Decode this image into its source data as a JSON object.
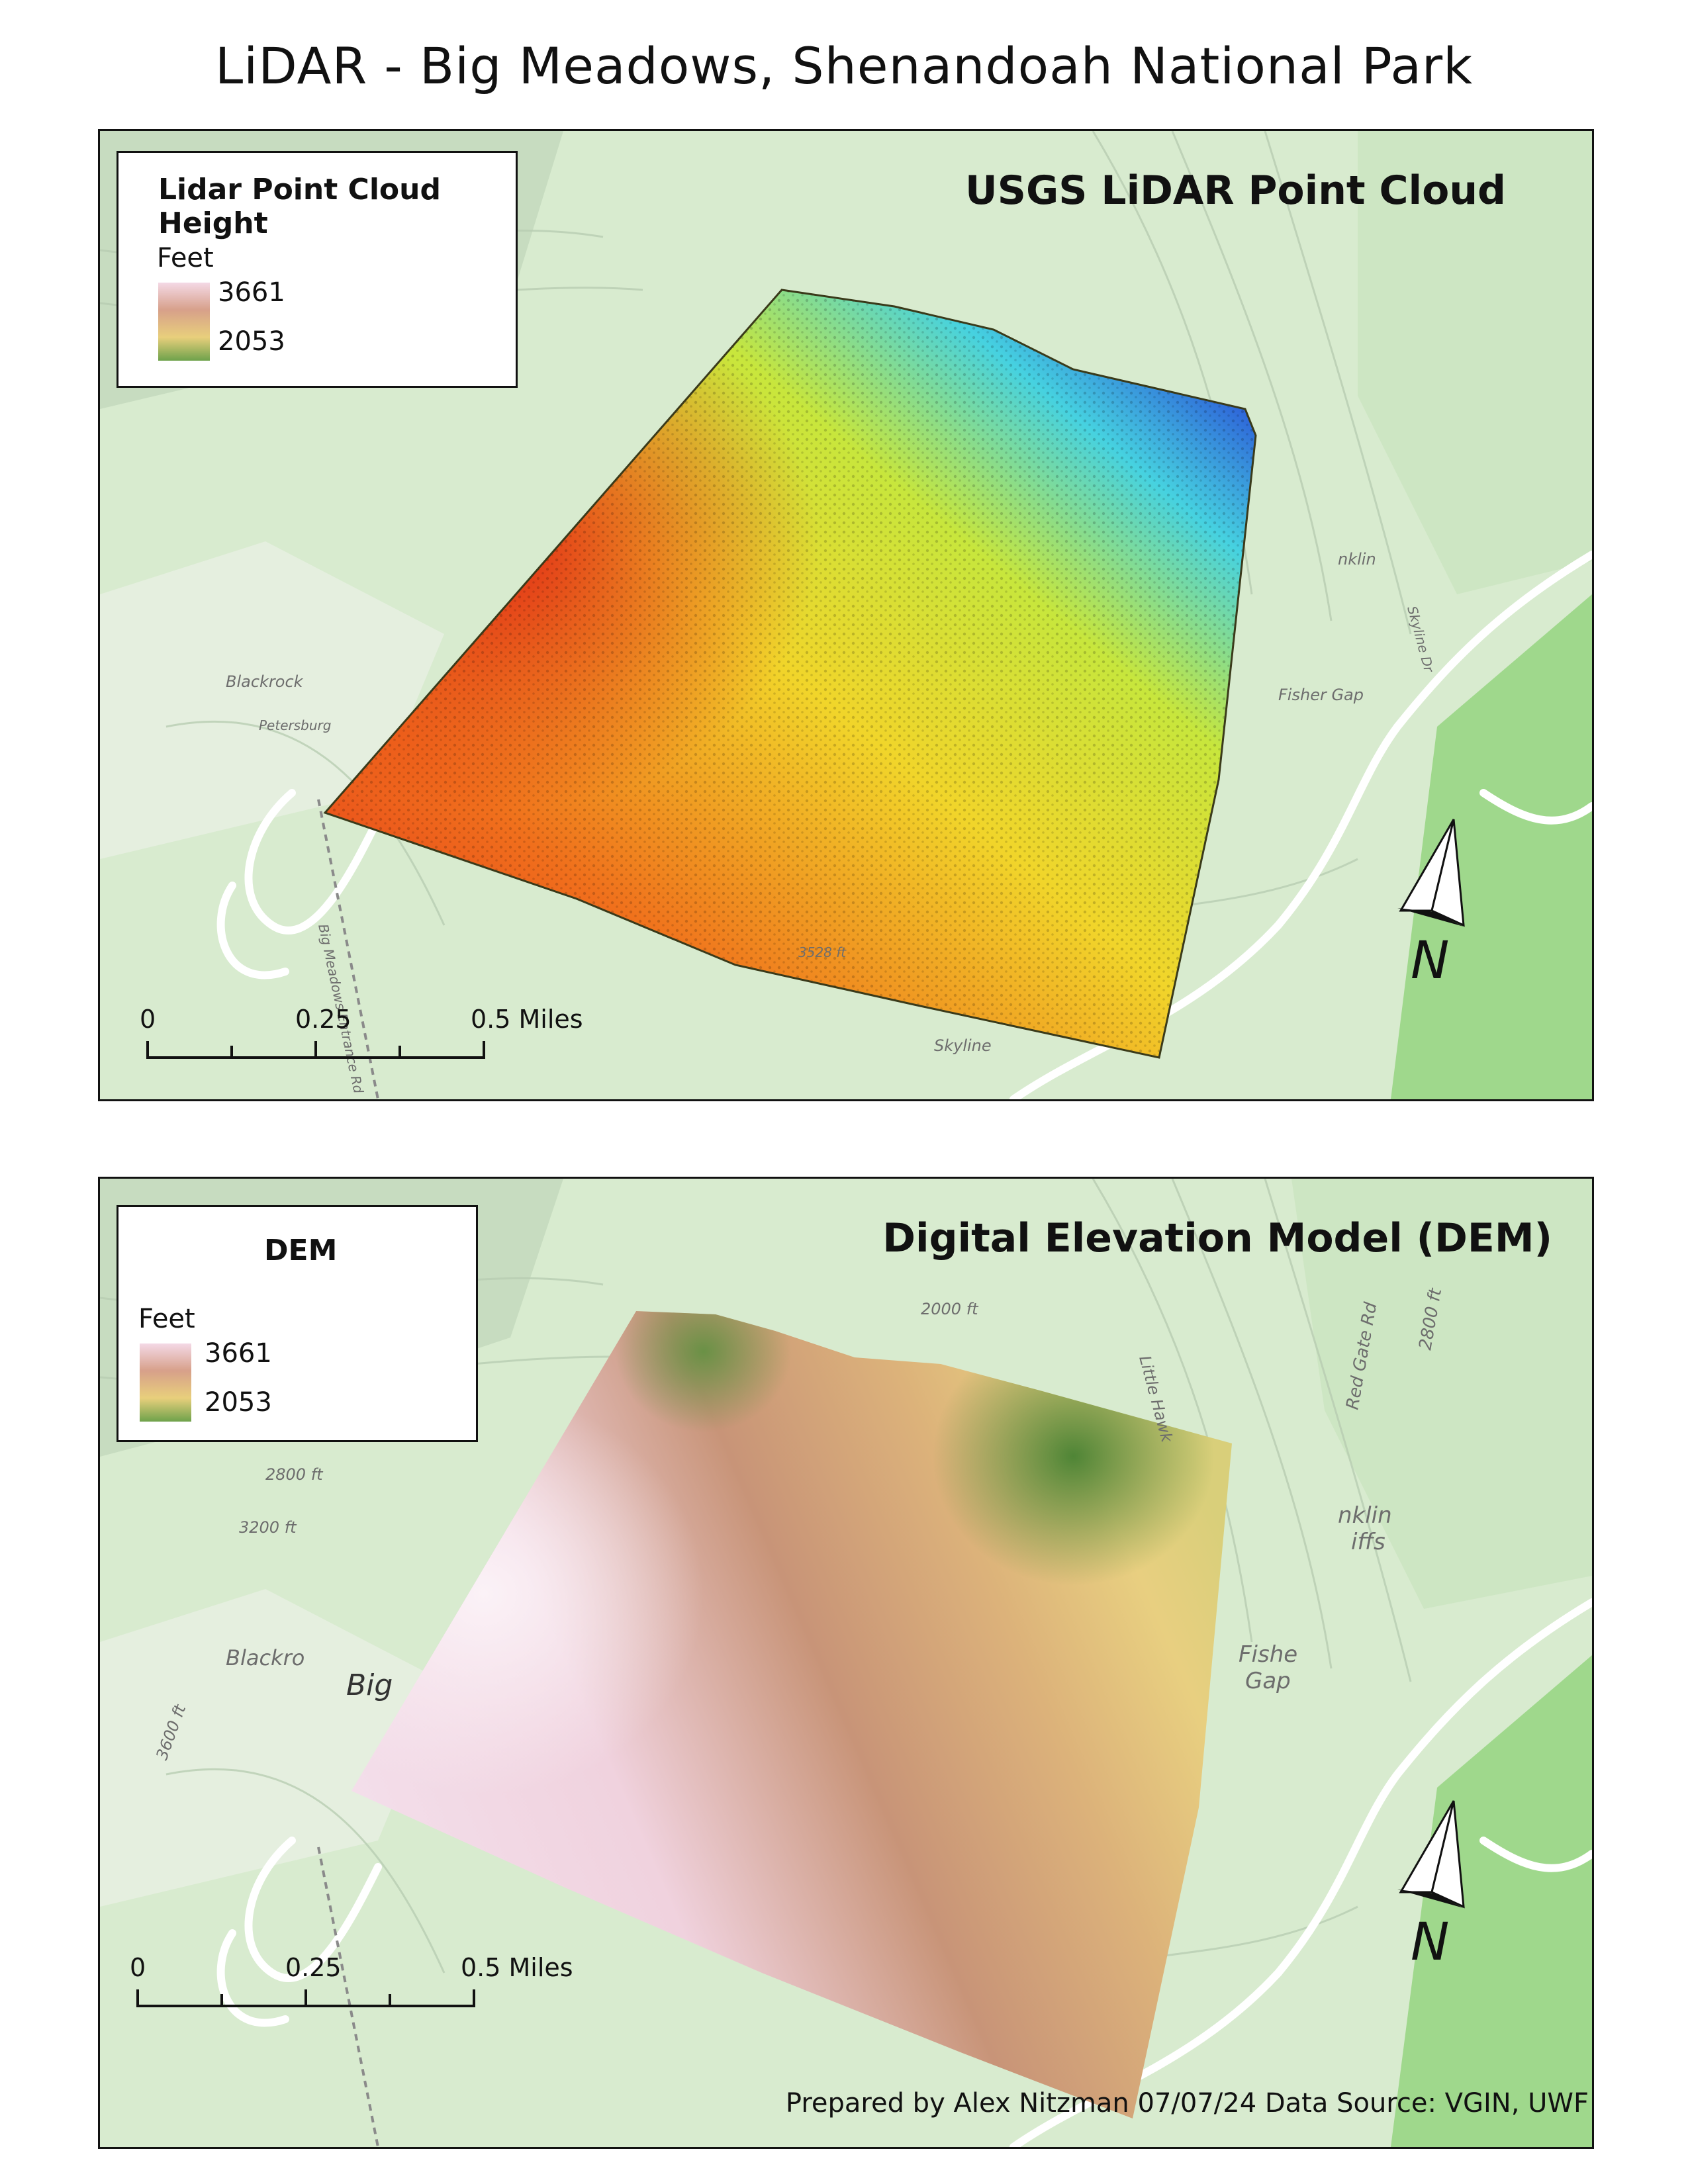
{
  "title": "LiDAR - Big Meadows, Shenandoah National Park",
  "credit": "Prepared by Alex Nitzman 07/07/24 Data Source: VGIN, UWF",
  "panels": {
    "top": {
      "heading": "USGS LiDAR Point Cloud",
      "legend": {
        "title": "Lidar Point Cloud Height",
        "unit": "Feet",
        "high": "3661",
        "low": "2053"
      },
      "scale": {
        "zero": "0",
        "mid": "0.25",
        "end": "0.5 Miles"
      },
      "north": "N",
      "map_labels": [
        "Blackrock",
        "Petersburg",
        "Big Meadows Entrance Rd",
        "3528 ft",
        "Skyline",
        "Fisher Gap",
        "nklin",
        "Skyline Dr"
      ]
    },
    "bottom": {
      "heading": "Digital Elevation Model (DEM)",
      "legend": {
        "title": "DEM",
        "unit": "Feet",
        "high": "3661",
        "low": "2053"
      },
      "scale": {
        "zero": "0",
        "mid": "0.25",
        "end": "0.5 Miles"
      },
      "north": "N",
      "map_labels": [
        "Blackro",
        "3600 ft",
        "3200 ft",
        "2800 ft",
        "2000 ft",
        "Red Gate Rd",
        "2800 ft",
        "Little Hawk",
        "nklin",
        "iffs",
        "Fishe",
        "Gap",
        "Big"
      ]
    }
  },
  "colors": {
    "lidar_ramp": [
      "#e52a1c",
      "#f07a1a",
      "#f5dc2a",
      "#c6e83a",
      "#3fd6e0",
      "#2a5ad8",
      "#4a2aa8"
    ],
    "dem_ramp": [
      "#f3dcea",
      "#c89478",
      "#e9c878",
      "#5f8f3c"
    ],
    "map_green": "#bfe3b1",
    "map_background": "#d6ebcd",
    "road": "#ffffff"
  }
}
